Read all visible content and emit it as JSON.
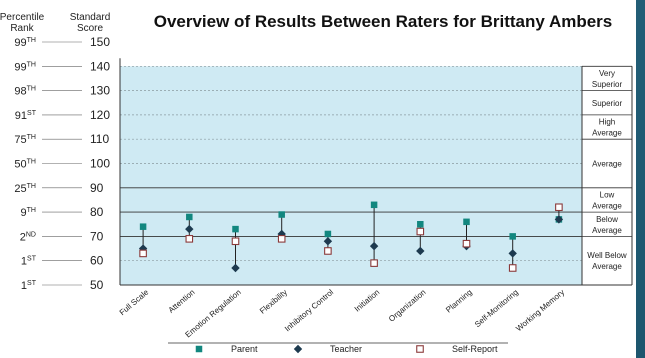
{
  "header": {
    "percentile_label_1": "Percentile",
    "percentile_label_2": "Rank",
    "score_label_1": "Standard",
    "score_label_2": "Score"
  },
  "chart_data": {
    "type": "scatter",
    "title": "Overview of Results Between Raters for Brittany Ambers",
    "ylim": [
      50,
      150
    ],
    "y_ticks": [
      {
        "score": 150,
        "pct_base": "99",
        "pct_sup": "TH"
      },
      {
        "score": 140,
        "pct_base": "99",
        "pct_sup": "TH"
      },
      {
        "score": 130,
        "pct_base": "98",
        "pct_sup": "TH"
      },
      {
        "score": 120,
        "pct_base": "91",
        "pct_sup": "ST"
      },
      {
        "score": 110,
        "pct_base": "75",
        "pct_sup": "TH"
      },
      {
        "score": 100,
        "pct_base": "50",
        "pct_sup": "TH"
      },
      {
        "score": 90,
        "pct_base": "25",
        "pct_sup": "TH"
      },
      {
        "score": 80,
        "pct_base": "9",
        "pct_sup": "TH"
      },
      {
        "score": 70,
        "pct_base": "2",
        "pct_sup": "ND"
      },
      {
        "score": 60,
        "pct_base": "1",
        "pct_sup": "ST"
      },
      {
        "score": 50,
        "pct_base": "1",
        "pct_sup": "ST"
      }
    ],
    "categories": [
      "Full Scale",
      "Attention",
      "Emotion Regulation",
      "Flexibility",
      "Inhibitory Control",
      "Initiation",
      "Organization",
      "Planning",
      "Self-Monitoring",
      "Working Memory"
    ],
    "series": [
      {
        "name": "Parent",
        "marker": "square",
        "color": "#12877f",
        "values": [
          74,
          78,
          73,
          79,
          71,
          83,
          75,
          76,
          70,
          77
        ]
      },
      {
        "name": "Teacher",
        "marker": "diamond",
        "color": "#1d3a4f",
        "values": [
          65,
          73,
          57,
          71,
          68,
          66,
          64,
          66,
          63,
          77
        ]
      },
      {
        "name": "Self-Report",
        "marker": "open-square",
        "color": "#8b3a3a",
        "values": [
          63,
          69,
          68,
          69,
          64,
          59,
          72,
          67,
          57,
          82
        ]
      }
    ],
    "bands": [
      {
        "from": 140,
        "to": 130,
        "label": [
          "Very",
          "Superior"
        ]
      },
      {
        "from": 130,
        "to": 120,
        "label": [
          "Superior"
        ]
      },
      {
        "from": 120,
        "to": 110,
        "label": [
          "High",
          "Average"
        ]
      },
      {
        "from": 110,
        "to": 90,
        "label": [
          "Average"
        ]
      },
      {
        "from": 90,
        "to": 80,
        "label": [
          "Low",
          "Average"
        ]
      },
      {
        "from": 80,
        "to": 70,
        "label": [
          "Below",
          "Average"
        ]
      },
      {
        "from": 70,
        "to": 50,
        "label": [
          "Well Below",
          "Average"
        ]
      }
    ],
    "colors": {
      "plot_bg": "#cfeaf3",
      "grid_dashed": "#8a9aa0",
      "grid_solid": "#333333",
      "whisker": "#222222"
    }
  }
}
